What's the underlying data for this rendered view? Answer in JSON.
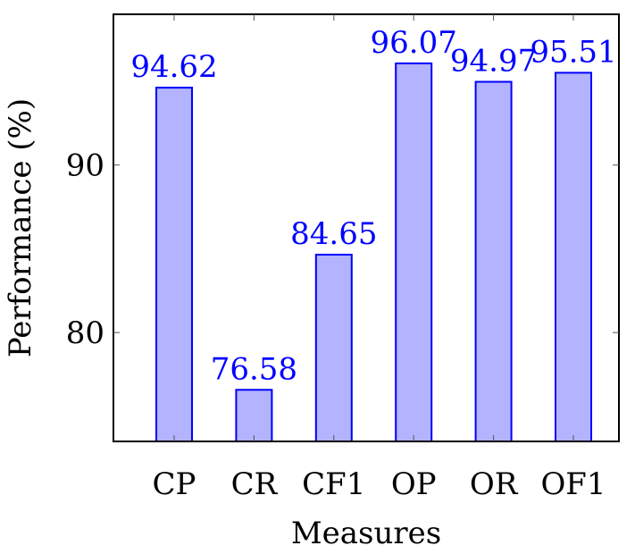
{
  "chart_data": {
    "type": "bar",
    "categories": [
      "CP",
      "CR",
      "CF1",
      "OP",
      "OR",
      "OF1"
    ],
    "values": [
      94.62,
      76.58,
      84.65,
      96.07,
      94.97,
      95.51
    ],
    "data_labels": [
      "94.62",
      "76.58",
      "84.65",
      "96.07",
      "94.97",
      "95.51"
    ],
    "title": "",
    "xlabel": "Measures",
    "ylabel": "Performance (%)",
    "ylim": [
      73.5,
      99
    ],
    "yticks": [
      80,
      90
    ],
    "grid": false,
    "legend": "none",
    "colors": {
      "bar_fill": "#b3b3ff",
      "bar_stroke": "#0000ff",
      "label": "#0000ff",
      "axis": "#000000"
    }
  }
}
